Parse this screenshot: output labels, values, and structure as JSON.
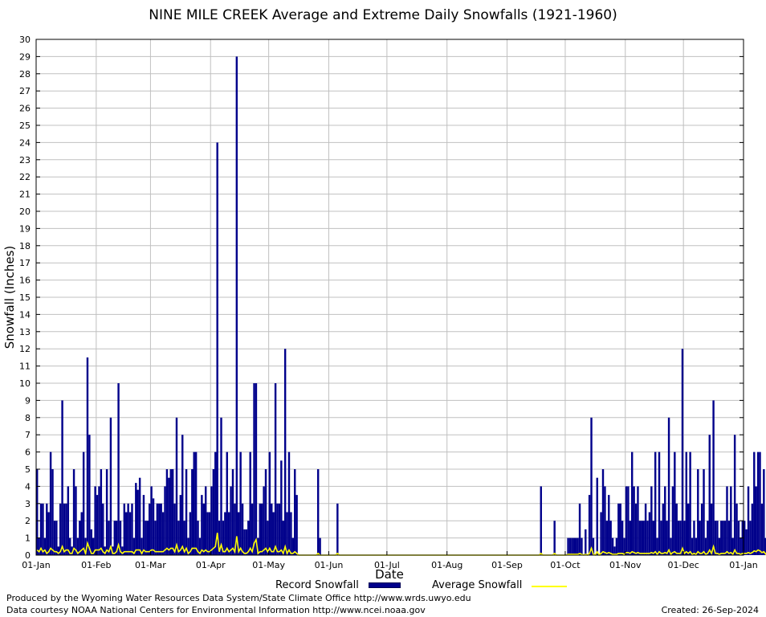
{
  "chart_data": {
    "type": "bar",
    "title": "NINE MILE CREEK Average and Extreme Daily Snowfalls (1921-1960)",
    "xlabel": "Date",
    "ylabel": "Snowfall (Inches)",
    "ylim": [
      0,
      30
    ],
    "yticks": [
      0,
      1,
      2,
      3,
      4,
      5,
      6,
      7,
      8,
      9,
      10,
      11,
      12,
      13,
      14,
      15,
      16,
      17,
      18,
      19,
      20,
      21,
      22,
      23,
      24,
      25,
      26,
      27,
      28,
      29,
      30
    ],
    "xlim_days": [
      0,
      365
    ],
    "xticks": [
      {
        "day": 0,
        "label": "01-Jan"
      },
      {
        "day": 31,
        "label": "01-Feb"
      },
      {
        "day": 59,
        "label": "01-Mar"
      },
      {
        "day": 90,
        "label": "01-Apr"
      },
      {
        "day": 120,
        "label": "01-May"
      },
      {
        "day": 151,
        "label": "01-Jun"
      },
      {
        "day": 181,
        "label": "01-Jul"
      },
      {
        "day": 212,
        "label": "01-Aug"
      },
      {
        "day": 243,
        "label": "01-Sep"
      },
      {
        "day": 273,
        "label": "01-Oct"
      },
      {
        "day": 304,
        "label": "01-Nov"
      },
      {
        "day": 334,
        "label": "01-Dec"
      },
      {
        "day": 365,
        "label": "01-Jan"
      }
    ],
    "grid": true,
    "series": [
      {
        "name": "Record Snowfall",
        "kind": "bar",
        "color": "#00008b",
        "values": [
          5,
          1,
          3,
          3,
          1,
          3,
          2.5,
          6,
          5,
          2,
          2,
          0.5,
          3,
          9,
          3,
          3,
          4,
          1,
          0.5,
          5,
          4,
          1,
          2,
          2.5,
          6,
          1,
          11.5,
          7,
          1.5,
          1,
          4,
          3.5,
          4,
          5,
          3,
          0.5,
          5,
          2,
          8,
          0.5,
          2,
          2,
          10,
          2,
          0.5,
          3,
          2.5,
          3,
          2.5,
          3,
          1,
          4.2,
          3.8,
          4.5,
          1,
          3.5,
          2,
          2,
          3,
          4,
          3.3,
          2,
          3,
          3,
          3,
          2.5,
          4,
          5,
          4.5,
          5,
          5,
          3,
          8,
          2,
          3.5,
          7,
          2,
          5,
          1,
          2.5,
          5,
          6,
          6,
          2,
          1,
          3.5,
          3,
          4,
          2.5,
          2.5,
          4,
          5,
          6,
          24,
          2,
          8,
          2,
          2.5,
          6,
          2.5,
          4,
          5,
          3,
          29,
          2.5,
          6,
          3,
          1.5,
          1.5,
          2,
          6,
          3,
          10,
          10,
          1,
          3,
          3,
          4,
          5,
          2,
          6,
          3,
          2.5,
          10,
          3,
          3,
          5.5,
          2,
          12,
          2.5,
          6,
          2.5,
          1,
          5,
          3.5,
          0,
          0,
          0,
          0,
          0,
          0,
          0,
          0,
          0,
          0,
          5,
          1,
          0,
          0,
          0,
          0,
          0,
          0,
          0,
          0,
          3,
          0,
          0,
          0,
          0,
          0,
          0,
          0,
          0,
          0,
          0,
          0,
          0,
          0,
          0,
          0,
          0,
          0,
          0,
          0,
          0,
          0,
          0,
          0,
          0,
          0,
          0,
          0,
          0,
          0,
          0,
          0,
          0,
          0,
          0,
          0,
          0,
          0,
          0,
          0,
          0,
          0,
          0,
          0,
          0,
          0,
          0,
          0,
          0,
          0,
          0,
          0,
          0,
          0,
          0,
          0,
          0,
          0,
          0,
          0,
          0,
          0,
          0,
          0,
          0,
          0,
          0,
          0,
          0,
          0,
          0,
          0,
          0,
          0,
          0,
          0,
          0,
          0,
          0,
          0,
          0,
          0,
          0,
          0,
          0,
          0,
          0,
          0,
          0,
          0,
          0,
          0,
          0,
          0,
          0,
          0,
          0,
          0,
          0,
          0,
          0,
          0,
          0,
          0,
          0,
          4,
          0,
          0,
          0,
          0,
          0,
          0,
          2,
          0,
          0,
          0,
          0,
          0,
          0,
          1,
          1,
          1,
          1,
          1,
          1,
          3,
          1,
          0,
          1.5,
          0,
          3.5,
          8,
          1,
          0,
          4.5,
          0,
          2.5,
          5,
          4,
          2,
          3.5,
          2,
          1,
          0.5,
          1,
          3,
          3,
          2,
          1,
          4,
          4,
          2,
          6,
          4,
          3,
          4,
          2,
          2,
          2,
          3,
          2,
          2.5,
          4,
          2,
          6,
          1,
          6,
          2,
          3,
          4,
          2,
          8,
          1,
          4,
          6,
          3,
          2,
          2,
          12,
          2,
          6,
          3,
          6,
          1,
          2,
          1,
          5,
          2,
          3,
          5,
          1,
          2,
          7,
          3,
          9,
          2,
          2,
          1,
          2,
          2,
          2,
          4,
          2,
          4,
          1,
          7,
          3,
          2,
          1,
          2,
          2,
          1.5,
          4,
          2,
          3,
          6,
          4,
          6,
          6,
          3,
          5,
          1,
          8,
          1.5
        ],
        "_note": "values listed per day starting 01-Jan"
      },
      {
        "name": "Average Snowfall",
        "kind": "line",
        "color": "#ffff00",
        "values": [
          0.3,
          0.2,
          0.4,
          0.2,
          0.3,
          0.1,
          0.2,
          0.4,
          0.3,
          0.2,
          0.2,
          0.1,
          0.2,
          0.5,
          0.2,
          0.3,
          0.3,
          0.1,
          0.1,
          0.4,
          0.3,
          0.1,
          0.2,
          0.3,
          0.4,
          0.1,
          0.7,
          0.4,
          0.1,
          0.1,
          0.3,
          0.3,
          0.3,
          0.4,
          0.2,
          0.1,
          0.3,
          0.2,
          0.5,
          0.1,
          0.1,
          0.2,
          0.6,
          0.2,
          0.1,
          0.2,
          0.2,
          0.2,
          0.2,
          0.2,
          0.1,
          0.3,
          0.3,
          0.3,
          0.1,
          0.3,
          0.2,
          0.2,
          0.2,
          0.3,
          0.3,
          0.2,
          0.2,
          0.2,
          0.2,
          0.2,
          0.3,
          0.4,
          0.3,
          0.4,
          0.4,
          0.2,
          0.6,
          0.2,
          0.3,
          0.5,
          0.2,
          0.4,
          0.1,
          0.2,
          0.4,
          0.4,
          0.4,
          0.2,
          0.1,
          0.3,
          0.2,
          0.3,
          0.2,
          0.2,
          0.3,
          0.4,
          0.5,
          1.3,
          0.2,
          0.6,
          0.2,
          0.2,
          0.4,
          0.2,
          0.3,
          0.4,
          0.2,
          1.1,
          0.2,
          0.4,
          0.2,
          0.1,
          0.1,
          0.2,
          0.4,
          0.2,
          0.7,
          0.9,
          0.1,
          0.2,
          0.2,
          0.3,
          0.4,
          0.2,
          0.4,
          0.2,
          0.2,
          0.5,
          0.2,
          0.2,
          0.3,
          0.1,
          0.5,
          0.1,
          0.3,
          0.1,
          0.1,
          0.2,
          0.1,
          0,
          0,
          0,
          0,
          0,
          0,
          0,
          0,
          0,
          0,
          0.1,
          0,
          0,
          0,
          0,
          0,
          0,
          0,
          0,
          0,
          0.1,
          0,
          0,
          0,
          0,
          0,
          0,
          0,
          0,
          0,
          0,
          0,
          0,
          0,
          0,
          0,
          0,
          0,
          0,
          0,
          0,
          0,
          0,
          0,
          0,
          0,
          0,
          0,
          0,
          0,
          0,
          0,
          0,
          0,
          0,
          0,
          0,
          0,
          0,
          0,
          0,
          0,
          0,
          0,
          0,
          0,
          0,
          0,
          0,
          0,
          0,
          0,
          0,
          0,
          0,
          0,
          0,
          0,
          0,
          0,
          0,
          0,
          0,
          0,
          0,
          0,
          0,
          0,
          0,
          0,
          0,
          0,
          0,
          0,
          0,
          0,
          0,
          0,
          0,
          0,
          0,
          0,
          0,
          0,
          0,
          0,
          0,
          0,
          0,
          0,
          0,
          0,
          0,
          0,
          0,
          0,
          0,
          0,
          0,
          0,
          0,
          0,
          0,
          0,
          0,
          0.1,
          0,
          0,
          0,
          0,
          0,
          0,
          0.1,
          0,
          0,
          0,
          0,
          0,
          0,
          0.05,
          0.05,
          0.05,
          0.05,
          0.05,
          0.05,
          0.1,
          0.05,
          0,
          0.05,
          0,
          0.1,
          0.4,
          0.05,
          0,
          0.2,
          0,
          0.1,
          0.2,
          0.15,
          0.1,
          0.15,
          0.1,
          0.05,
          0.05,
          0.05,
          0.1,
          0.1,
          0.1,
          0.05,
          0.15,
          0.15,
          0.1,
          0.2,
          0.15,
          0.1,
          0.15,
          0.1,
          0.1,
          0.1,
          0.1,
          0.1,
          0.1,
          0.15,
          0.1,
          0.2,
          0.05,
          0.2,
          0.1,
          0.1,
          0.15,
          0.1,
          0.3,
          0.05,
          0.15,
          0.2,
          0.1,
          0.1,
          0.1,
          0.4,
          0.1,
          0.2,
          0.1,
          0.2,
          0.05,
          0.1,
          0.05,
          0.2,
          0.1,
          0.1,
          0.2,
          0.05,
          0.1,
          0.3,
          0.1,
          0.5,
          0.1,
          0.1,
          0.05,
          0.1,
          0.1,
          0.1,
          0.2,
          0.1,
          0.15,
          0.05,
          0.3,
          0.1,
          0.1,
          0.05,
          0.1,
          0.1,
          0.1,
          0.15,
          0.1,
          0.15,
          0.25,
          0.2,
          0.3,
          0.25,
          0.15,
          0.2,
          0.05,
          0.3,
          0.1
        ]
      }
    ]
  },
  "legend": {
    "record_label": "Record Snowfall",
    "average_label": "Average Snowfall"
  },
  "footer": {
    "line1": "Produced by the Wyoming Water Resources Data System/State Climate Office http://www.wrds.uwyo.edu",
    "line2": "Data courtesy NOAA National Centers for Environmental Information http://www.ncei.noaa.gov",
    "created": "Created:  26-Sep-2024"
  }
}
